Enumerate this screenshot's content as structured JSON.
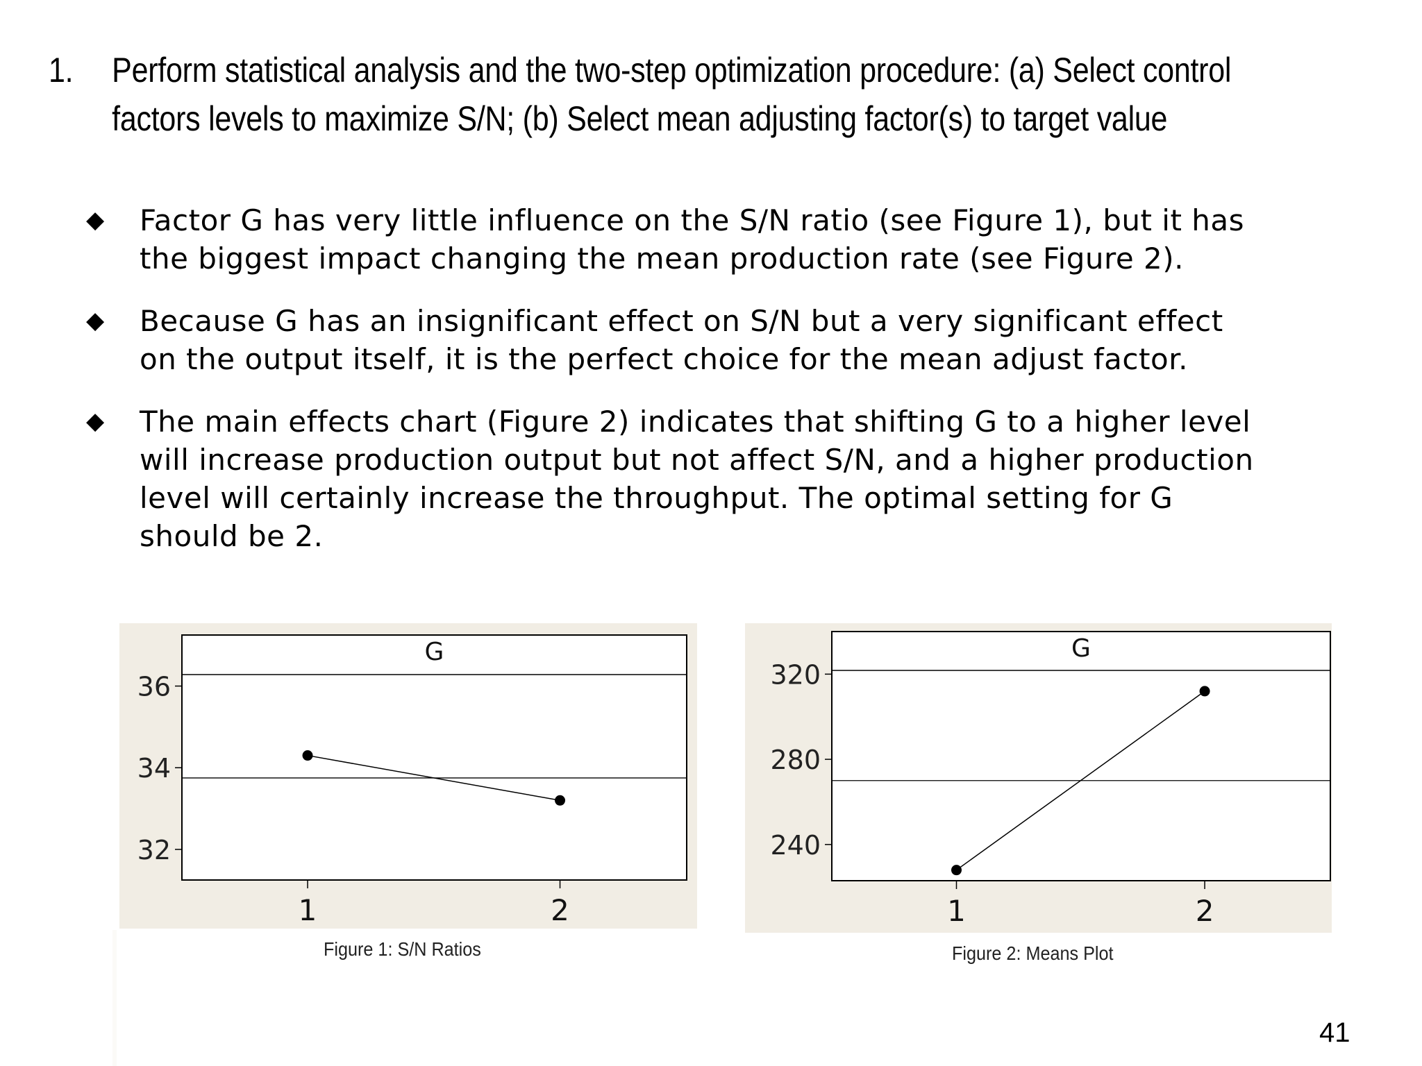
{
  "heading": {
    "number": "1.",
    "line1": "Perform statistical analysis and the two-step optimization procedure: (a) Select control",
    "line2": "factors levels to maximize S/N; (b) Select mean adjusting factor(s) to target value"
  },
  "bullets": [
    {
      "icon": "diamond-bullet-icon",
      "lines": [
        "Factor G has very little influence on the S/N ratio (see Figure 1), but it has",
        "the biggest impact changing the mean production rate (see Figure 2)."
      ]
    },
    {
      "icon": "diamond-bullet-icon",
      "lines": [
        "Because G has an insignificant effect on S/N but a very significant effect",
        "on the output itself, it is the perfect choice for the mean adjust factor."
      ]
    },
    {
      "icon": "diamond-bullet-icon",
      "lines": [
        "The main effects chart (Figure 2) indicates that shifting G to a higher level",
        "will increase production output but not affect S/N, and a higher production",
        "level will certainly increase the throughput. The optimal setting for G",
        "should be 2."
      ]
    }
  ],
  "chart_data": [
    {
      "type": "line",
      "title": "G",
      "caption": "Figure 1: S/N Ratios",
      "categories": [
        "1",
        "2"
      ],
      "values": [
        34.3,
        33.2
      ],
      "mean_reference": 33.75,
      "yticks": [
        "32",
        "34",
        "36"
      ],
      "ylim": [
        31.25,
        37.25
      ],
      "grid": false,
      "colors": {
        "line": "#000000",
        "panel": "#f1ede4",
        "plot": "#ffffff"
      }
    },
    {
      "type": "line",
      "title": "G",
      "caption": "Figure 2: Means Plot",
      "categories": [
        "1",
        "2"
      ],
      "values": [
        228,
        312
      ],
      "mean_reference": 270,
      "yticks": [
        "240",
        "280",
        "320"
      ],
      "ylim": [
        223,
        340
      ],
      "grid": false,
      "colors": {
        "line": "#000000",
        "panel": "#f1ede4",
        "plot": "#ffffff"
      }
    }
  ],
  "page_number": "41"
}
